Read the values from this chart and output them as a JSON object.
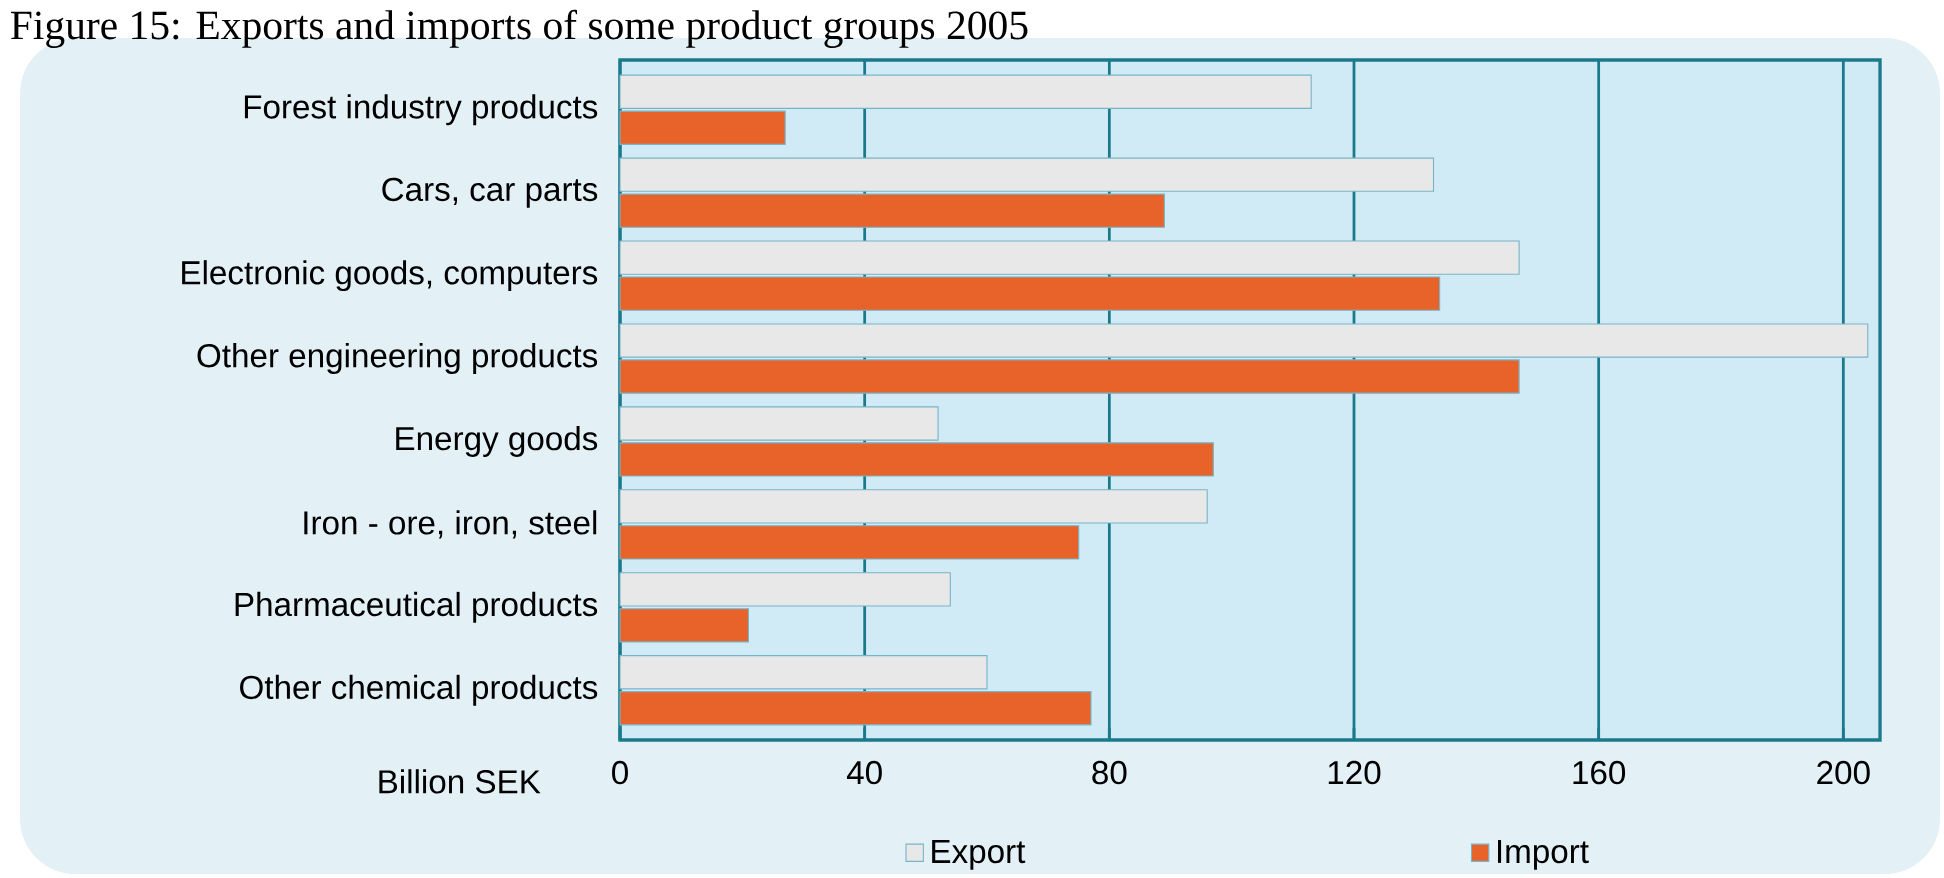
{
  "chart_data": {
    "type": "bar",
    "orientation": "horizontal",
    "title": "Figure 15: Exports and imports of some product groups 2005",
    "xlabel": "Billion SEK",
    "categories": [
      "Forest industry products",
      "Cars, car parts",
      "Electronic goods, computers",
      "Other engineering products",
      "Energy goods",
      "Iron - ore, iron, steel",
      "Pharmaceutical products",
      "Other chemical products"
    ],
    "series": [
      {
        "name": "Export",
        "color": "#e8e8e8",
        "values": [
          113,
          133,
          147,
          204,
          52,
          96,
          54,
          60
        ]
      },
      {
        "name": "Import",
        "color": "#e8632a",
        "values": [
          27,
          89,
          134,
          147,
          97,
          75,
          21,
          77
        ]
      }
    ],
    "xlim": [
      0,
      206
    ],
    "xticks": [
      0,
      40,
      80,
      120,
      160,
      200
    ],
    "grid": "x",
    "legend": "bottom"
  }
}
